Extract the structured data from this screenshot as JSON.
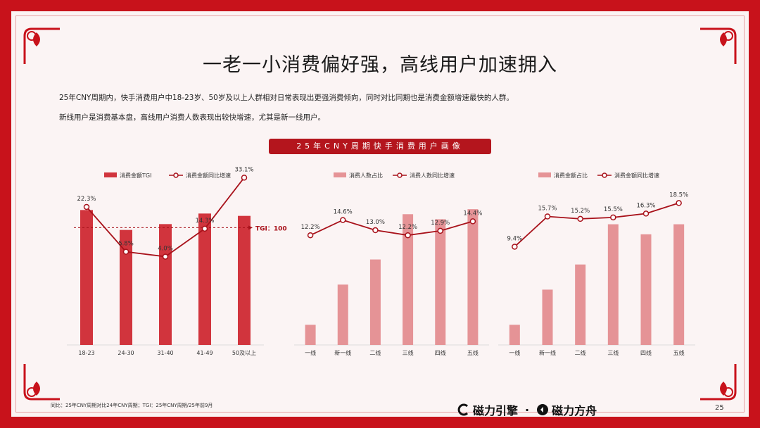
{
  "title": "一老一小消费偏好强，高线用户加速拥入",
  "desc_line1": "25年CNY周期内，快手消费用户中18-23岁、50岁及以上人群相对日常表现出更强消费倾向，同时对比同期也是消费金额增速最快的人群。",
  "desc_line2": "新线用户是消费基本盘，高线用户消费人数表现出较快增速，尤其是新一线用户。",
  "banner": "25年CNY周期快手消费用户画像",
  "footnote": "同比：25年CNY周期对比24年CNY周期；TGI：25年CNY周期/25年前9月",
  "brand": {
    "a": "磁力引擎",
    "dot": "·",
    "b": "磁力方舟"
  },
  "page_number": "25",
  "colors": {
    "dark_bar": "#d1343d",
    "light_bar": "#e59396",
    "line": "#a8111a",
    "frame": "#c8121b"
  },
  "chart_data": [
    {
      "type": "bar",
      "categories": [
        "18-23",
        "24-30",
        "31-40",
        "41-49",
        "50及以上"
      ],
      "series": [
        {
          "name": "消费金额TGI",
          "kind": "bar",
          "values": [
            115,
            98,
            103,
            112,
            110
          ]
        },
        {
          "name": "消费金额同比增速",
          "kind": "line",
          "values": [
            22.3,
            5.8,
            4.0,
            14.3,
            33.1
          ],
          "labels": [
            "22.3%",
            "5.8%",
            "4.0%",
            "14.3%",
            "33.1%"
          ]
        }
      ],
      "reference_line": {
        "value": 100,
        "label": "TGI：100"
      }
    },
    {
      "type": "bar",
      "categories": [
        "一线",
        "新一线",
        "二线",
        "三线",
        "四线",
        "五线"
      ],
      "series": [
        {
          "name": "消费人数占比",
          "kind": "bar",
          "values": [
            4,
            12,
            17,
            26,
            25,
            27
          ]
        },
        {
          "name": "消费人数同比增速",
          "kind": "line",
          "values": [
            12.2,
            14.6,
            13.0,
            12.2,
            12.9,
            14.4
          ],
          "labels": [
            "12.2%",
            "14.6%",
            "13.0%",
            "12.2%",
            "12.9%",
            "14.4%"
          ]
        }
      ]
    },
    {
      "type": "bar",
      "categories": [
        "一线",
        "新一线",
        "二线",
        "三线",
        "四线",
        "五线"
      ],
      "series": [
        {
          "name": "消费金额占比",
          "kind": "bar",
          "values": [
            4,
            11,
            16,
            24,
            22,
            24
          ]
        },
        {
          "name": "消费金额同比增速",
          "kind": "line",
          "values": [
            9.4,
            15.7,
            15.2,
            15.5,
            16.3,
            18.5
          ],
          "labels": [
            "9.4%",
            "15.7%",
            "15.2%",
            "15.5%",
            "16.3%",
            "18.5%"
          ]
        }
      ]
    }
  ]
}
